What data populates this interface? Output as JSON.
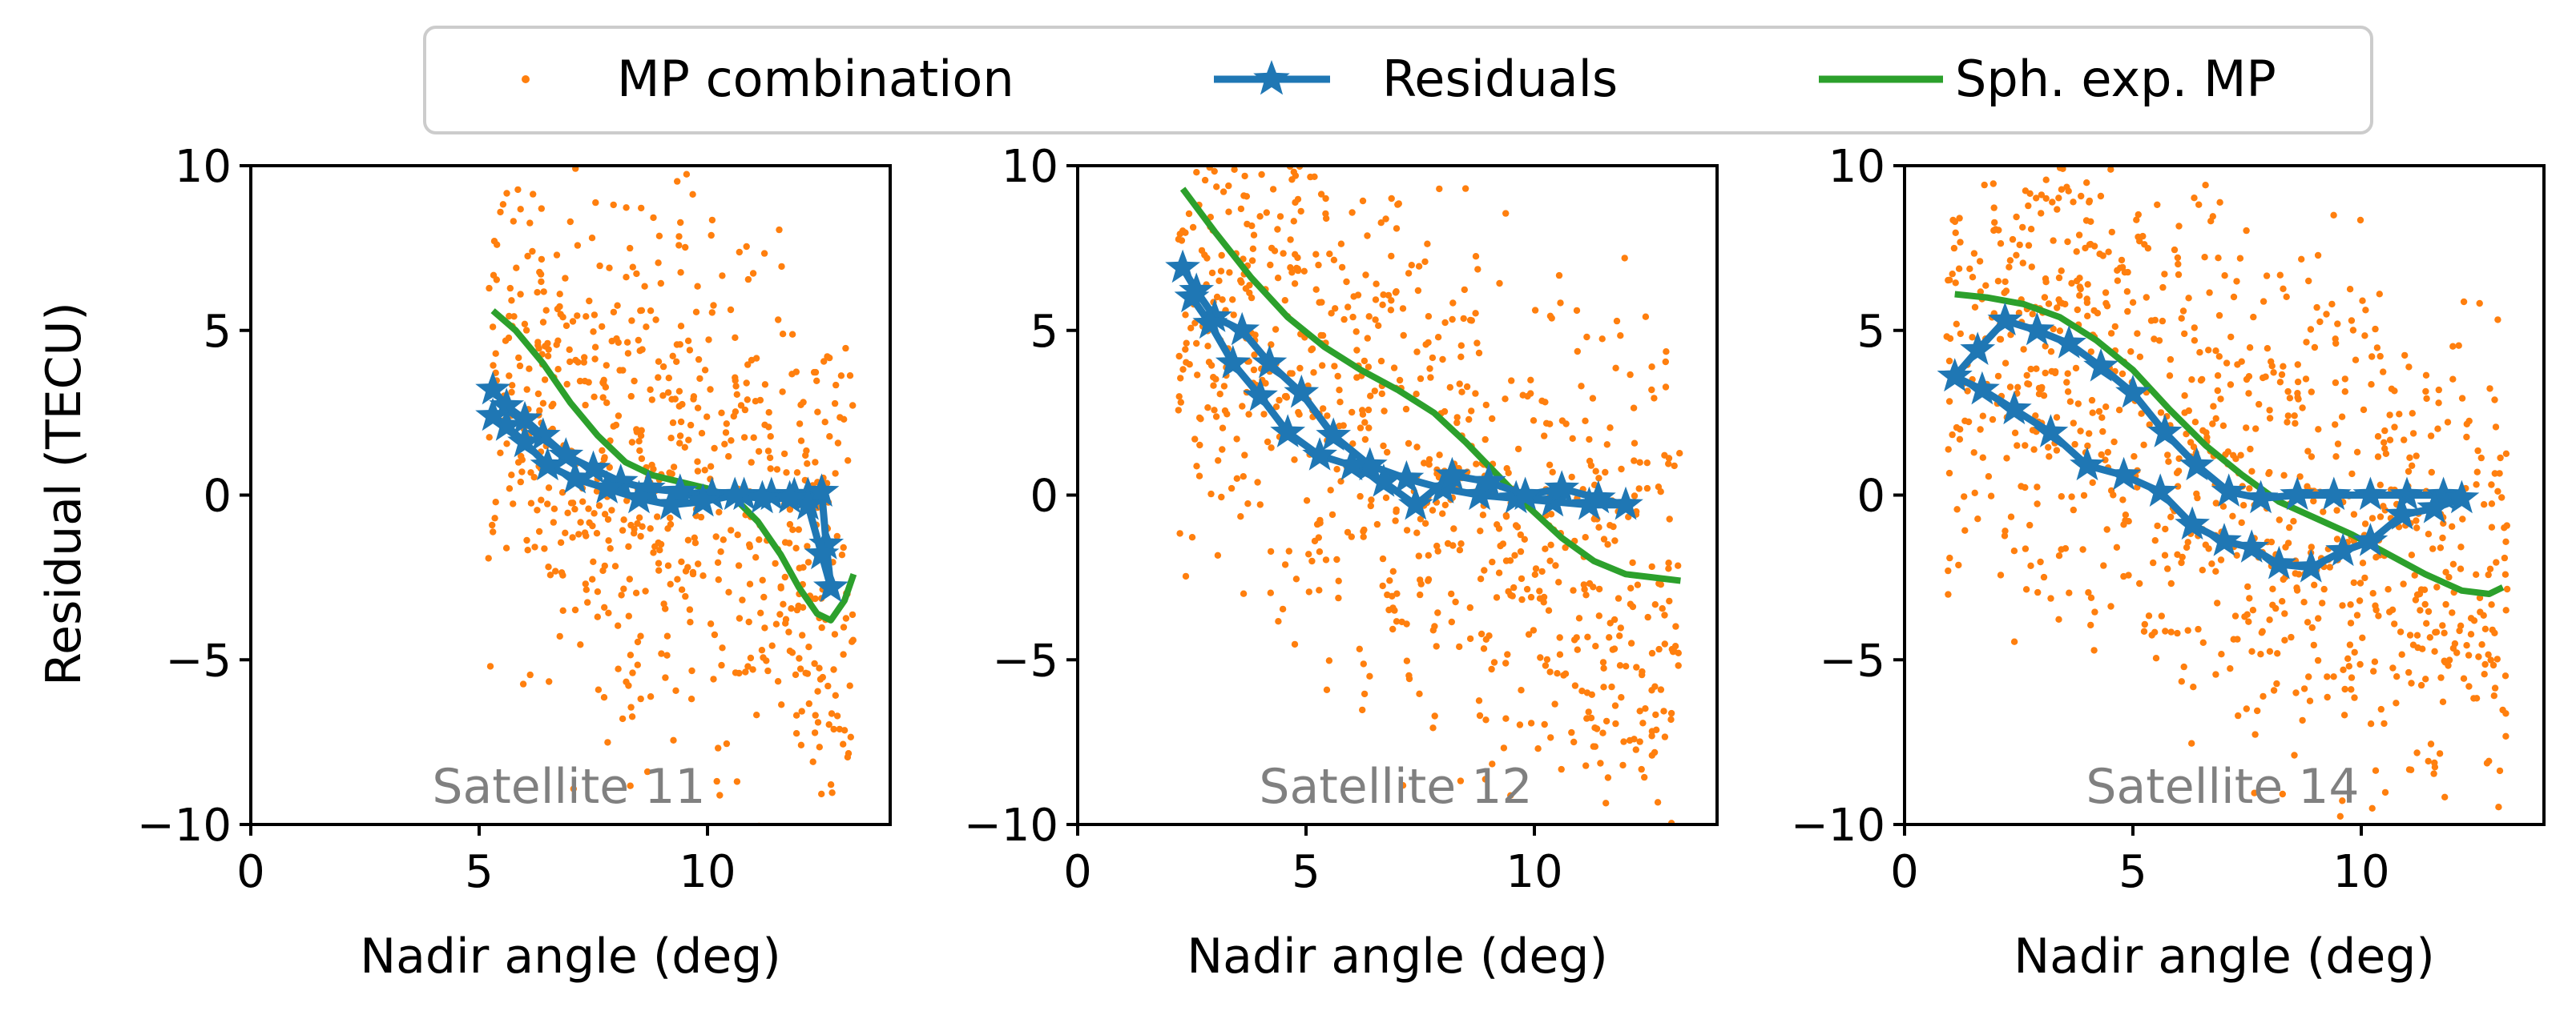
{
  "legend": {
    "items": [
      {
        "label": "MP combination",
        "color": "#ff7f0e",
        "marker": "dot"
      },
      {
        "label": "Residuals",
        "color": "#1f77b4",
        "marker": "star-line"
      },
      {
        "label": "Sph. exp. MP",
        "color": "#2ca02c",
        "marker": "line"
      }
    ]
  },
  "colors": {
    "scatter": "#ff7f0e",
    "residuals": "#1f77b4",
    "model": "#2ca02c",
    "satellite_label": "#808080"
  },
  "chart_data": [
    {
      "type": "scatter",
      "title": "Satellite 11",
      "xlabel": "Nadir angle (deg)",
      "ylabel": "Residual (TECU)",
      "xlim": [
        0,
        14
      ],
      "ylim": [
        -10,
        10
      ],
      "xticks": [
        0,
        5,
        10
      ],
      "yticks": [
        -10,
        -5,
        0,
        5,
        10
      ],
      "xtick_labels": [
        "0",
        "5",
        "10"
      ],
      "ytick_labels": [
        "−10",
        "−5",
        "0",
        "5",
        "10"
      ],
      "scatter_cloud": {
        "x_range": [
          5.2,
          13.2
        ],
        "n_points": 700,
        "seed": 11,
        "mean_by_x": [
          [
            5.2,
            5.0
          ],
          [
            8.0,
            1.0
          ],
          [
            10.0,
            1.0
          ],
          [
            12.0,
            -2.0
          ],
          [
            13.2,
            -3.0
          ]
        ],
        "spread": 4.2
      },
      "series": [
        {
          "name": "Residuals",
          "x": [
            5.3,
            5.6,
            6.0,
            6.4,
            6.9,
            7.5,
            8.1,
            8.7,
            9.4,
            10.1,
            10.8,
            11.4,
            11.9,
            12.2,
            12.5,
            12.6,
            12.7,
            12.5,
            12.2,
            11.8,
            11.2,
            10.6,
            9.9,
            9.2,
            8.5,
            7.8,
            7.1,
            6.5,
            6.0,
            5.6,
            5.3
          ],
          "y": [
            3.2,
            2.7,
            2.3,
            1.8,
            1.2,
            0.8,
            0.4,
            0.2,
            0.1,
            0.0,
            0.0,
            0.0,
            0.0,
            0.0,
            0.1,
            -1.5,
            -2.8,
            -1.8,
            -0.3,
            -0.1,
            -0.1,
            0.0,
            -0.2,
            -0.3,
            -0.1,
            0.2,
            0.5,
            0.9,
            1.6,
            2.1,
            2.4
          ]
        },
        {
          "name": "Sph. exp. MP",
          "x": [
            5.3,
            5.8,
            6.4,
            7.0,
            7.6,
            8.2,
            8.8,
            9.4,
            10.0,
            10.6,
            11.1,
            11.6,
            12.0,
            12.4,
            12.7,
            13.0,
            13.2
          ],
          "y": [
            5.6,
            5.0,
            4.0,
            2.8,
            1.8,
            1.0,
            0.6,
            0.4,
            0.2,
            -0.1,
            -0.8,
            -1.8,
            -2.8,
            -3.6,
            -3.8,
            -3.2,
            -2.4
          ]
        }
      ]
    },
    {
      "type": "scatter",
      "title": "Satellite 12",
      "xlabel": "Nadir angle (deg)",
      "ylabel": "",
      "xlim": [
        0,
        14
      ],
      "ylim": [
        -10,
        10
      ],
      "xticks": [
        0,
        5,
        10
      ],
      "yticks": [
        -10,
        -5,
        0,
        5,
        10
      ],
      "xtick_labels": [
        "0",
        "5",
        "10"
      ],
      "ytick_labels": [
        "−10",
        "−5",
        "0",
        "5",
        "10"
      ],
      "scatter_cloud": {
        "x_range": [
          2.2,
          13.2
        ],
        "n_points": 850,
        "seed": 12,
        "mean_by_x": [
          [
            2.2,
            8.0
          ],
          [
            5.0,
            4.5
          ],
          [
            8.0,
            1.0
          ],
          [
            10.5,
            -2.0
          ],
          [
            13.2,
            -4.0
          ]
        ],
        "spread": 4.0
      },
      "series": [
        {
          "name": "Residuals",
          "x": [
            2.3,
            2.6,
            3.0,
            3.6,
            4.2,
            4.9,
            5.6,
            6.4,
            7.2,
            8.0,
            8.8,
            9.6,
            10.4,
            11.2,
            12.0,
            11.4,
            10.6,
            9.8,
            9.0,
            8.2,
            7.4,
            6.7,
            6.0,
            5.3,
            4.6,
            4.0,
            3.4,
            2.9,
            2.5
          ],
          "y": [
            6.9,
            6.2,
            5.4,
            5.0,
            4.0,
            3.1,
            1.8,
            0.9,
            0.5,
            0.2,
            0.0,
            -0.1,
            -0.2,
            -0.3,
            -0.3,
            -0.1,
            0.2,
            0.0,
            0.4,
            0.6,
            -0.3,
            0.4,
            0.9,
            1.2,
            1.9,
            3.0,
            4.0,
            5.2,
            6.0
          ]
        },
        {
          "name": "Sph. exp. MP",
          "x": [
            2.3,
            3.0,
            3.8,
            4.6,
            5.4,
            6.2,
            7.0,
            7.8,
            8.5,
            9.2,
            9.9,
            10.6,
            11.3,
            12.0,
            12.6,
            13.2
          ],
          "y": [
            9.3,
            8.0,
            6.6,
            5.4,
            4.5,
            3.8,
            3.2,
            2.5,
            1.6,
            0.6,
            -0.4,
            -1.3,
            -2.0,
            -2.4,
            -2.5,
            -2.6
          ]
        }
      ]
    },
    {
      "type": "scatter",
      "title": "Satellite 14",
      "xlabel": "Nadir angle (deg)",
      "ylabel": "",
      "xlim": [
        0,
        14
      ],
      "ylim": [
        -10,
        10
      ],
      "xticks": [
        0,
        5,
        10
      ],
      "yticks": [
        -10,
        -5,
        0,
        5,
        10
      ],
      "xtick_labels": [
        "0",
        "5",
        "10"
      ],
      "ytick_labels": [
        "−10",
        "−5",
        "0",
        "5",
        "10"
      ],
      "scatter_cloud": {
        "x_range": [
          0.9,
          13.2
        ],
        "n_points": 950,
        "seed": 14,
        "mean_by_x": [
          [
            0.9,
            5.0
          ],
          [
            3.0,
            5.0
          ],
          [
            6.0,
            2.0
          ],
          [
            9.0,
            -1.0
          ],
          [
            13.2,
            -3.0
          ]
        ],
        "spread": 4.0
      },
      "series": [
        {
          "name": "Residuals",
          "x": [
            1.1,
            1.6,
            2.2,
            2.9,
            3.6,
            4.3,
            5.0,
            5.7,
            6.4,
            7.1,
            7.8,
            8.6,
            9.4,
            10.2,
            11.0,
            11.8,
            12.2,
            11.6,
            10.9,
            10.2,
            9.6,
            8.9,
            8.2,
            7.6,
            7.0,
            6.3,
            5.6,
            4.8,
            4.0,
            3.2,
            2.4,
            1.7,
            1.1
          ],
          "y": [
            3.6,
            4.4,
            5.3,
            5.0,
            4.6,
            3.9,
            3.1,
            1.9,
            0.9,
            0.1,
            -0.1,
            0.0,
            0.0,
            0.0,
            0.0,
            0.0,
            -0.1,
            -0.4,
            -0.6,
            -1.4,
            -1.7,
            -2.2,
            -2.1,
            -1.6,
            -1.4,
            -0.9,
            0.1,
            0.6,
            0.9,
            1.9,
            2.6,
            3.2,
            3.6
          ]
        },
        {
          "name": "Sph. exp. MP",
          "x": [
            1.1,
            1.8,
            2.6,
            3.4,
            4.2,
            5.0,
            5.8,
            6.6,
            7.4,
            8.2,
            9.0,
            9.8,
            10.6,
            11.4,
            12.2,
            12.8,
            13.1
          ],
          "y": [
            6.1,
            6.0,
            5.8,
            5.4,
            4.7,
            3.8,
            2.6,
            1.5,
            0.6,
            -0.2,
            -0.7,
            -1.2,
            -1.8,
            -2.4,
            -2.9,
            -3.0,
            -2.8
          ]
        }
      ]
    }
  ]
}
